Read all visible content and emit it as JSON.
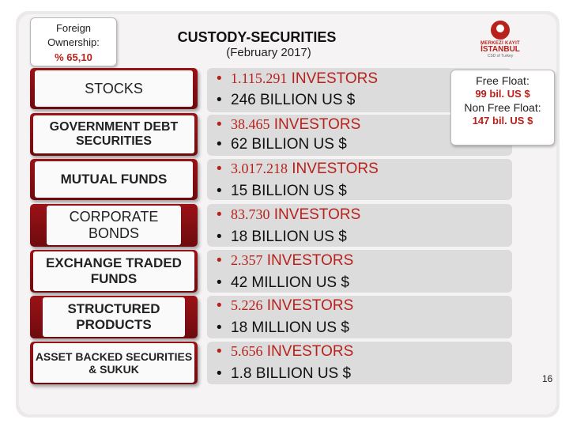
{
  "foreign_ownership": {
    "label": "Foreign\nOwnership:",
    "value": "% 65,10"
  },
  "title": "CUSTODY-SECURITIES",
  "subtitle": "(February 2017)",
  "logo": {
    "line1": "MERKEZİ KAYIT",
    "line2": "İSTANBUL",
    "line3": "CSD of Turkey"
  },
  "categories": [
    {
      "name": "STOCKS",
      "investors_count": "1.115.291",
      "investors_word": "INVESTORS",
      "value": "246 BILLION US $"
    },
    {
      "name": "GOVERNMENT DEBT SECURITIES",
      "investors_count": "38.465",
      "investors_word": "INVESTORS",
      "value": "62 BILLION US $"
    },
    {
      "name": "MUTUAL FUNDS",
      "investors_count": "3.017.218",
      "investors_word": "INVESTORS",
      "value": "15 BILLION US $"
    },
    {
      "name": "CORPORATE BONDS",
      "investors_count": "83.730",
      "investors_word": "INVESTORS",
      "value": "18 BILLION US $"
    },
    {
      "name": "EXCHANGE TRADED FUNDS",
      "investors_count": "2.357",
      "investors_word": "INVESTORS",
      "value": "42 MILLION US $"
    },
    {
      "name": "STRUCTURED PRODUCTS",
      "investors_count": "5.226",
      "investors_word": "INVESTORS",
      "value": "18 MILLION US $"
    },
    {
      "name": "ASSET BACKED SECURITIES & SUKUK",
      "investors_count": "5.656",
      "investors_word": "INVESTORS",
      "value": "1.8 BILLION US $"
    }
  ],
  "free_float": {
    "label": "Free Float:",
    "value": "99 bil. US $",
    "non_label": "Non Free Float:",
    "non_value": "147 bil. US $"
  },
  "bullet": "•",
  "page_number": "16"
}
